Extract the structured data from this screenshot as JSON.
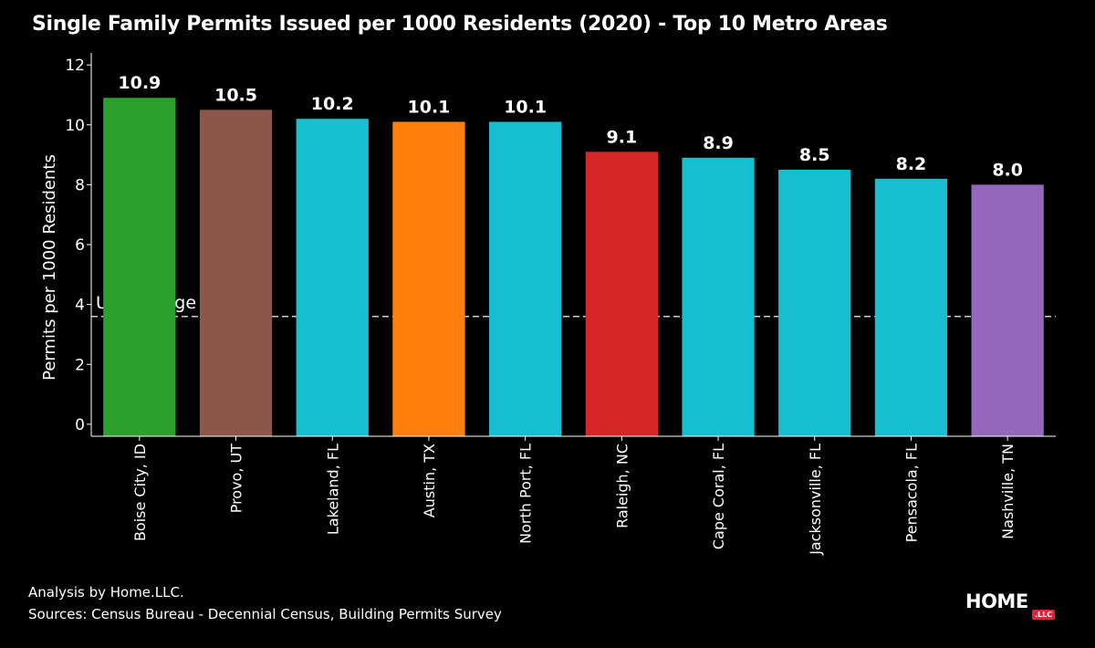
{
  "chart_data": {
    "type": "bar",
    "title": "Single Family Permits Issued per 1000 Residents (2020) - Top 10 Metro Areas",
    "ylabel": "Permits per 1000 Residents",
    "xlabel": "",
    "categories": [
      "Boise City, ID",
      "Provo, UT",
      "Lakeland, FL",
      "Austin, TX",
      "North Port, FL",
      "Raleigh, NC",
      "Cape Coral, FL",
      "Jacksonville, FL",
      "Pensacola, FL",
      "Nashville, TN"
    ],
    "values": [
      10.9,
      10.5,
      10.2,
      10.1,
      10.1,
      9.1,
      8.9,
      8.5,
      8.2,
      8.0
    ],
    "value_labels": [
      "10.9",
      "10.5",
      "10.2",
      "10.1",
      "10.1",
      "9.1",
      "8.9",
      "8.5",
      "8.2",
      "8.0"
    ],
    "colors": [
      "#2ca02c",
      "#8c564b",
      "#17becf",
      "#ff7f0e",
      "#17becf",
      "#d62728",
      "#17becf",
      "#17becf",
      "#17becf",
      "#9467bd"
    ],
    "yticks": [
      "0",
      "2",
      "4",
      "6",
      "8",
      "10",
      "12"
    ],
    "ylim": [
      -0.4,
      12.4
    ],
    "grid": false,
    "reference_line": {
      "label": "US Average",
      "value": 3.6,
      "style": "dashed",
      "color": "#cccccc"
    }
  },
  "footer": {
    "analysis": "Analysis by Home.LLC.",
    "sources": "Sources: Census Bureau - Decennial Census, Building Permits Survey"
  },
  "logo": {
    "text": "HOME",
    "badge": ".LLC"
  }
}
